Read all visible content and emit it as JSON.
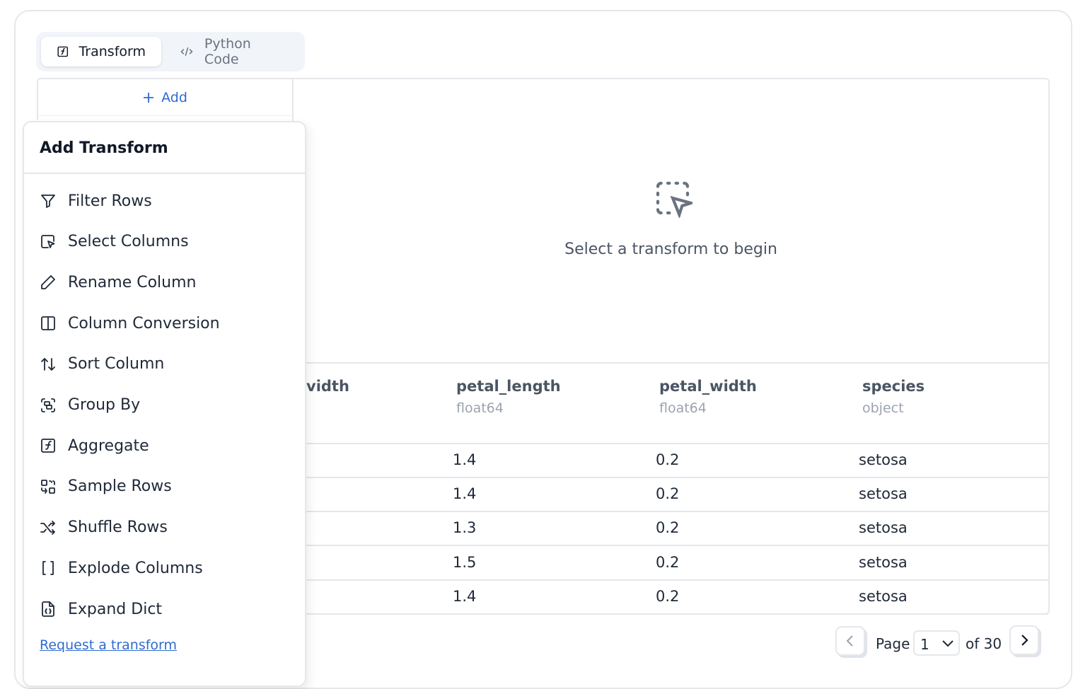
{
  "tabs": [
    {
      "label": "Transform",
      "icon": "function-square-icon",
      "active": true
    },
    {
      "label": "Python Code",
      "icon": "code-icon",
      "active": false
    }
  ],
  "add_button": {
    "label": "Add",
    "icon": "plus-icon"
  },
  "empty_state": {
    "icon": "dashed-square-pointer-icon",
    "text": "Select a transform to begin"
  },
  "table": {
    "columns": [
      {
        "name": "vidth",
        "type": ""
      },
      {
        "name": "petal_length",
        "type": "float64"
      },
      {
        "name": "petal_width",
        "type": "float64"
      },
      {
        "name": "species",
        "type": "object"
      }
    ],
    "rows": [
      [
        "1.4",
        "0.2",
        "setosa"
      ],
      [
        "1.4",
        "0.2",
        "setosa"
      ],
      [
        "1.3",
        "0.2",
        "setosa"
      ],
      [
        "1.5",
        "0.2",
        "setosa"
      ],
      [
        "1.4",
        "0.2",
        "setosa"
      ]
    ]
  },
  "popup": {
    "title": "Add Transform",
    "items": [
      {
        "label": "Filter Rows",
        "icon": "filter-icon"
      },
      {
        "label": "Select Columns",
        "icon": "square-pointer-icon"
      },
      {
        "label": "Rename Column",
        "icon": "pencil-icon"
      },
      {
        "label": "Column Conversion",
        "icon": "columns-icon"
      },
      {
        "label": "Sort Column",
        "icon": "arrow-up-down-icon"
      },
      {
        "label": "Group By",
        "icon": "group-icon"
      },
      {
        "label": "Aggregate",
        "icon": "function-square-icon"
      },
      {
        "label": "Sample Rows",
        "icon": "sample-icon"
      },
      {
        "label": "Shuffle Rows",
        "icon": "shuffle-icon"
      },
      {
        "label": "Explode Columns",
        "icon": "brackets-icon"
      },
      {
        "label": "Expand Dict",
        "icon": "file-braces-icon"
      }
    ],
    "request_link": "Request a transform"
  },
  "pagination": {
    "page_label": "Page",
    "current_page": "1",
    "of_label": "of 30"
  },
  "colors": {
    "accent": "#2f6bd1",
    "border": "#e5e7eb",
    "tab_bg": "#f1f4f9"
  }
}
